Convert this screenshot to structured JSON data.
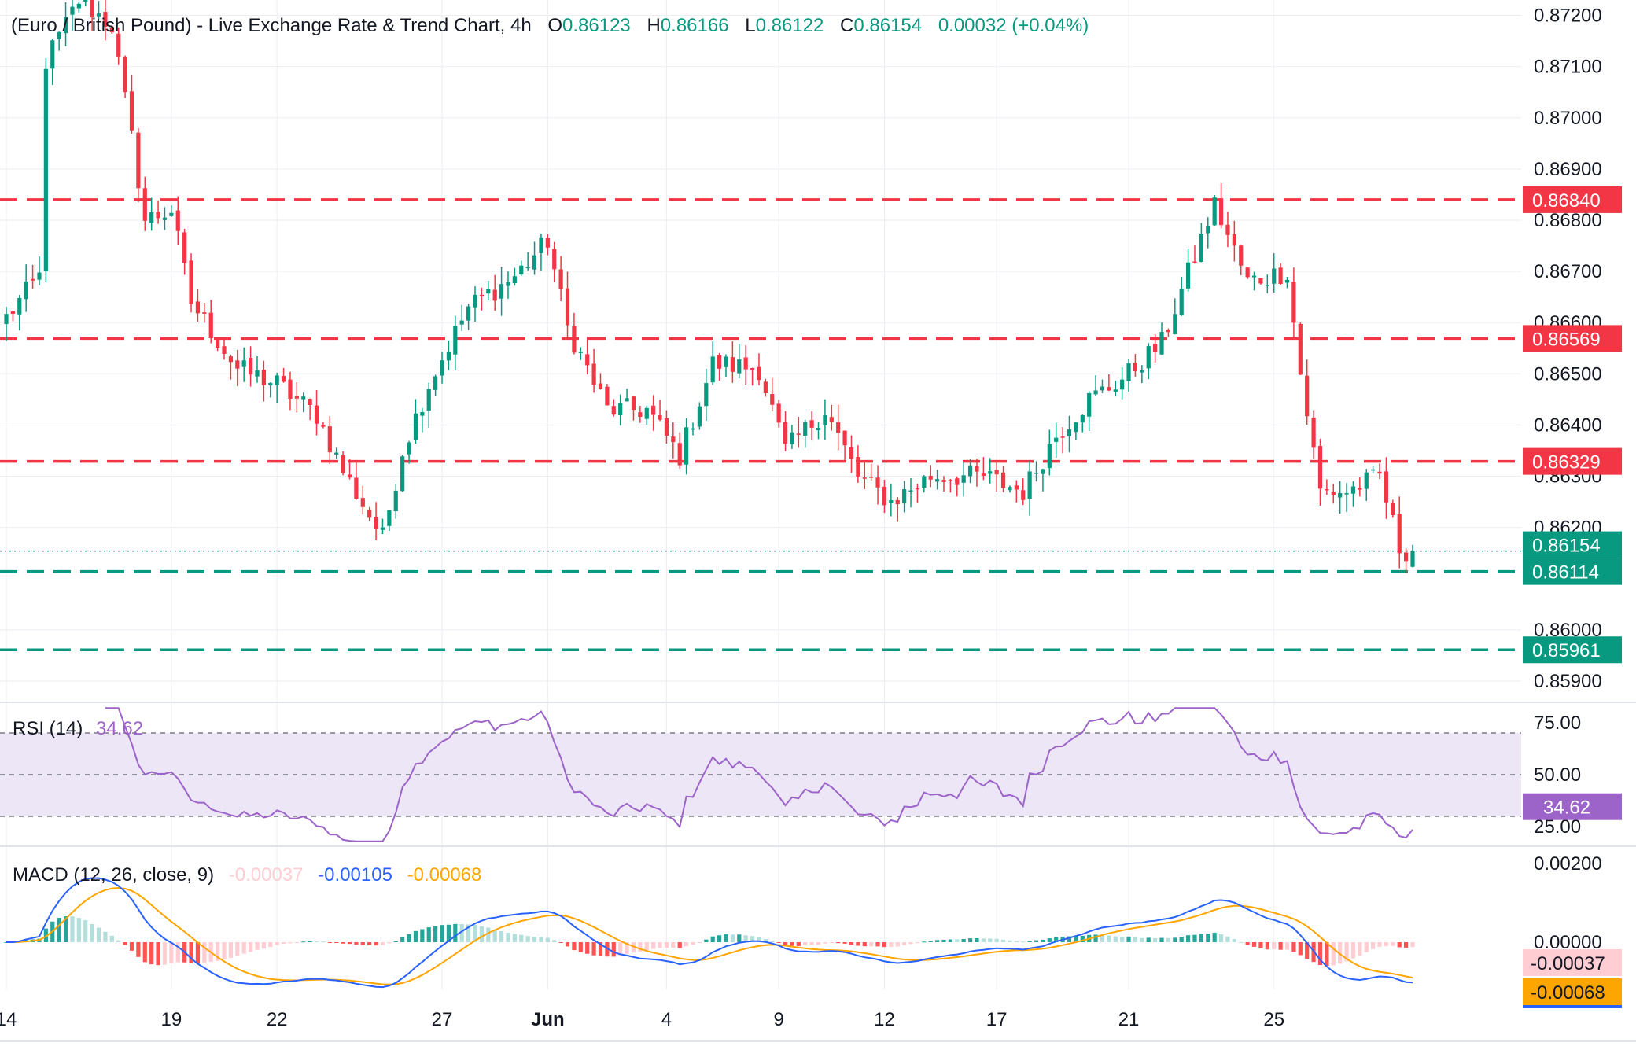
{
  "header": {
    "title": "(Euro / British Pound) - Live Exchange Rate & Trend Chart, 4h",
    "open_label": "O",
    "open_value": "0.86123",
    "high_label": "H",
    "high_value": "0.86166",
    "low_label": "L",
    "low_value": "0.86122",
    "close_label": "C",
    "close_value": "0.86154",
    "change_value": "0.00032 (+0.04%)"
  },
  "colors": {
    "up": "#089981",
    "down": "#f23645",
    "rsi": "#9c64c8",
    "rsi_band": "#ece6f7",
    "macd_line": "#2962ff",
    "signal_line": "#ffa500",
    "hist_up_strong": "#26a69a",
    "hist_up_weak": "#b2dfdb",
    "hist_down_strong": "#ff5252",
    "hist_down_weak": "#ffcdd2",
    "grid": "#eceef2",
    "text": "#131722"
  },
  "price_axis": {
    "ticks": [
      "0.87200",
      "0.87100",
      "0.87000",
      "0.86900",
      "0.86800",
      "0.86700",
      "0.86600",
      "0.86500",
      "0.86400",
      "0.86300",
      "0.86200",
      "0.86000",
      "0.85900"
    ]
  },
  "levels": [
    {
      "label": "0.86840",
      "value": 0.8684,
      "color": "#f23645"
    },
    {
      "label": "0.86569",
      "value": 0.86569,
      "color": "#f23645"
    },
    {
      "label": "0.86329",
      "value": 0.86329,
      "color": "#f23645"
    },
    {
      "label": "0.86114",
      "value": 0.86114,
      "color": "#089981"
    },
    {
      "label": "0.85961",
      "value": 0.85961,
      "color": "#089981"
    }
  ],
  "last_price": {
    "label": "0.86154",
    "value": 0.86154
  },
  "x_axis": {
    "ticks": [
      "14",
      "19",
      "22",
      "27",
      "Jun",
      "4",
      "9",
      "12",
      "17",
      "21",
      "25"
    ]
  },
  "rsi": {
    "label": "RSI (14)",
    "value": "34.62",
    "badge": "34.62",
    "ticks": [
      "75.00",
      "50.00",
      "25.00"
    ]
  },
  "macd": {
    "label": "MACD (12, 26, close, 9)",
    "hist_value": "-0.00037",
    "macd_value": "-0.00105",
    "signal_value": "-0.00068",
    "ticks": [
      "0.00200",
      "0.00000"
    ],
    "badges": {
      "hist": "-0.00037",
      "signal": "-0.00068"
    }
  },
  "chart_data": {
    "type": "candlestick",
    "instrument": "(Euro / British Pound) - Live Exchange Rate & Trend Chart",
    "timeframe": "4h",
    "ylim": [
      0.8586,
      0.8723
    ],
    "x_labels": [
      "14",
      "19",
      "22",
      "27",
      "Jun",
      "4",
      "9",
      "12",
      "17",
      "21",
      "25"
    ],
    "path_anchors": [
      [
        0,
        0.8661
      ],
      [
        5,
        0.8669
      ],
      [
        6,
        0.8711
      ],
      [
        11,
        0.8723
      ],
      [
        16,
        0.8718
      ],
      [
        19,
        0.8696
      ],
      [
        21,
        0.868
      ],
      [
        25,
        0.8682
      ],
      [
        28,
        0.8664
      ],
      [
        35,
        0.8651
      ],
      [
        41,
        0.8648
      ],
      [
        47,
        0.8642
      ],
      [
        51,
        0.8631
      ],
      [
        57,
        0.8618
      ],
      [
        60,
        0.8635
      ],
      [
        64,
        0.8648
      ],
      [
        70,
        0.8663
      ],
      [
        77,
        0.8669
      ],
      [
        82,
        0.8676
      ],
      [
        85,
        0.8659
      ],
      [
        91,
        0.8643
      ],
      [
        97,
        0.8643
      ],
      [
        102,
        0.8634
      ],
      [
        107,
        0.8652
      ],
      [
        114,
        0.8651
      ],
      [
        118,
        0.8635
      ],
      [
        124,
        0.8643
      ],
      [
        129,
        0.863
      ],
      [
        134,
        0.8625
      ],
      [
        140,
        0.863
      ],
      [
        148,
        0.863
      ],
      [
        154,
        0.8627
      ],
      [
        159,
        0.8638
      ],
      [
        164,
        0.8645
      ],
      [
        169,
        0.8649
      ],
      [
        175,
        0.8656
      ],
      [
        180,
        0.8673
      ],
      [
        183,
        0.8683
      ],
      [
        188,
        0.8668
      ],
      [
        194,
        0.867
      ],
      [
        196,
        0.865
      ],
      [
        199,
        0.8627
      ],
      [
        203,
        0.8627
      ],
      [
        208,
        0.863
      ],
      [
        211,
        0.8616
      ],
      [
        213,
        0.8615
      ]
    ],
    "candle_count": 214,
    "last": {
      "open": 0.86123,
      "high": 0.86166,
      "low": 0.86122,
      "close": 0.86154
    },
    "rsi": {
      "current": 34.62,
      "upper_band": 70,
      "middle_band": 50,
      "lower_band": 30
    },
    "macd": {
      "histogram": -0.00037,
      "macd": -0.00105,
      "signal": -0.00068
    }
  }
}
